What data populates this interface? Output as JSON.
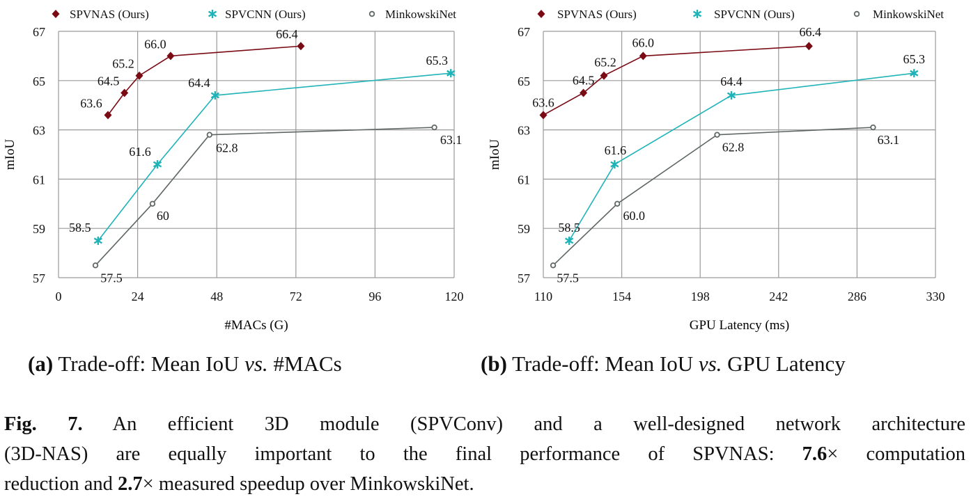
{
  "chart_data": [
    {
      "type": "line",
      "xlabel": "#MACs (G)",
      "ylabel": "mIoU",
      "xlim": [
        0,
        120
      ],
      "ylim": [
        57,
        67
      ],
      "xticks": [
        "0",
        "24",
        "48",
        "72",
        "96",
        "120"
      ],
      "yticks": [
        "57",
        "59",
        "61",
        "63",
        "65",
        "67"
      ],
      "grid": true,
      "legend": "top",
      "series": [
        {
          "name": "SPVNAS (Ours)",
          "color": "#7a0a14",
          "marker": "diamond",
          "x": [
            15,
            20,
            24.5,
            34,
            73.5
          ],
          "y": [
            63.6,
            64.5,
            65.2,
            66.0,
            66.4
          ],
          "labels": [
            "63.6",
            "64.5",
            "65.2",
            "66.0",
            "66.4"
          ]
        },
        {
          "name": "SPVCNN (Ours)",
          "color": "#1fb3b8",
          "marker": "star",
          "x": [
            12,
            30,
            47.5,
            119
          ],
          "y": [
            58.5,
            61.6,
            64.4,
            65.3
          ],
          "labels": [
            "58.5",
            "61.6",
            "64.4",
            "65.3"
          ]
        },
        {
          "name": "MinkowskiNet",
          "color": "#5f6666",
          "marker": "circle",
          "x": [
            11.2,
            28.5,
            45.8,
            114
          ],
          "y": [
            57.5,
            60.0,
            62.8,
            63.1
          ],
          "labels": [
            "57.5",
            "60",
            "62.8",
            "63.1"
          ]
        }
      ],
      "subcaption": {
        "tag": "(a)",
        "text": " Trade-off: Mean IoU ",
        "vs": "vs.",
        "rest": " #MACs"
      }
    },
    {
      "type": "line",
      "xlabel": "GPU Latency (ms)",
      "ylabel": "mIoU",
      "xlim": [
        110,
        330
      ],
      "ylim": [
        57,
        67
      ],
      "xticks": [
        "110",
        "154",
        "198",
        "242",
        "286",
        "330"
      ],
      "yticks": [
        "57",
        "59",
        "61",
        "63",
        "65",
        "67"
      ],
      "grid": true,
      "legend": "top",
      "series": [
        {
          "name": "SPVNAS (Ours)",
          "color": "#7a0a14",
          "marker": "diamond",
          "x": [
            110,
            132.5,
            144,
            166,
            259
          ],
          "y": [
            63.6,
            64.5,
            65.2,
            66.0,
            66.4
          ],
          "labels": [
            "63.6",
            "64.5",
            "65.2",
            "66.0",
            "66.4"
          ]
        },
        {
          "name": "SPVCNN (Ours)",
          "color": "#1fb3b8",
          "marker": "star",
          "x": [
            124.5,
            150,
            215.5,
            318
          ],
          "y": [
            58.5,
            61.6,
            64.4,
            65.3
          ],
          "labels": [
            "58.5",
            "61.6",
            "64.4",
            "65.3"
          ]
        },
        {
          "name": "MinkowskiNet",
          "color": "#5f6666",
          "marker": "circle",
          "x": [
            115.5,
            151.5,
            207.5,
            295
          ],
          "y": [
            57.5,
            60.0,
            62.8,
            63.1
          ],
          "labels": [
            "57.5",
            "60.0",
            "62.8",
            "63.1"
          ]
        }
      ],
      "subcaption": {
        "tag": "(b)",
        "text": " Trade-off: Mean IoU ",
        "vs": "vs.",
        "rest": " GPU Latency"
      }
    }
  ],
  "caption": {
    "lines": [
      {
        "bold": "Fig. 7.",
        "text": " An efficient 3D module (SPVConv) and a well-designed network architecture"
      },
      {
        "text": "(3D-NAS) are equally important to the final performance of SPVNAS: ",
        "bold2": "7.6",
        "text2": "× computation"
      },
      {
        "text": "reduction and ",
        "bold2": "2.7",
        "text2": "× measured speedup over MinkowskiNet."
      }
    ]
  }
}
